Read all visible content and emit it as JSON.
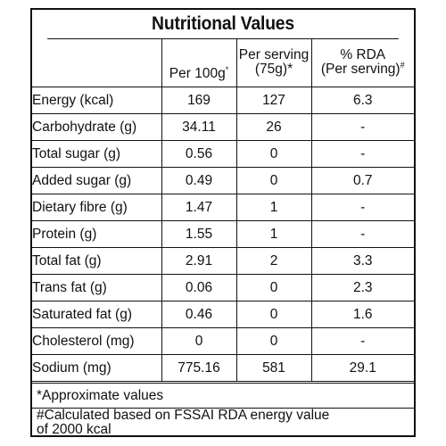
{
  "title": "Nutritional Values",
  "header": {
    "per100g": "Per 100g",
    "per100g_sup": "*",
    "per_serving_line1": "Per serving",
    "per_serving_line2": "(75g)*",
    "rda_line1": "% RDA",
    "rda_line2": "(Per serving)",
    "rda_sup": "#"
  },
  "rows": [
    {
      "name": "Energy (kcal)",
      "per100g": "169",
      "serving": "127",
      "rda": "6.3"
    },
    {
      "name": "Carbohydrate (g)",
      "per100g": "34.11",
      "serving": "26",
      "rda": "-"
    },
    {
      "name": "Total sugar (g)",
      "per100g": "0.56",
      "serving": "0",
      "rda": "-"
    },
    {
      "name": "Added sugar (g)",
      "per100g": "0.49",
      "serving": "0",
      "rda": "0.7"
    },
    {
      "name": "Dietary fibre (g)",
      "per100g": "1.47",
      "serving": "1",
      "rda": "-"
    },
    {
      "name": "Protein (g)",
      "per100g": "1.55",
      "serving": "1",
      "rda": "-"
    },
    {
      "name": "Total fat (g)",
      "per100g": "2.91",
      "serving": "2",
      "rda": "3.3"
    },
    {
      "name": "Trans fat (g)",
      "per100g": "0.06",
      "serving": "0",
      "rda": "2.3"
    },
    {
      "name": "Saturated fat (g)",
      "per100g": "0.46",
      "serving": "0",
      "rda": "1.6"
    },
    {
      "name": "Cholesterol (mg)",
      "per100g": "0",
      "serving": "0",
      "rda": "-"
    },
    {
      "name": "Sodium (mg)",
      "per100g": "775.16",
      "serving": "581",
      "rda": "29.1"
    }
  ],
  "footnotes": {
    "approx": "*Approximate values",
    "rda_line1": "#Calculated based on FSSAI RDA energy value",
    "rda_line2": "of 2000 kcal"
  }
}
